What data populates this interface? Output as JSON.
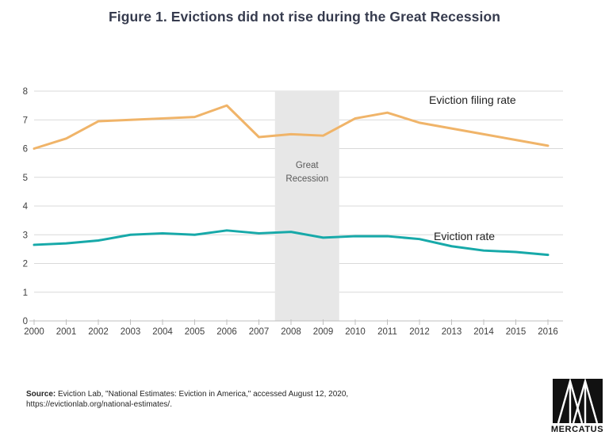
{
  "title": "Figure 1. Evictions did not rise during the Great Recession",
  "chart_data": {
    "type": "line",
    "title": "Figure 1. Evictions did not rise during the Great Recession",
    "x": [
      2000,
      2001,
      2002,
      2003,
      2004,
      2005,
      2006,
      2007,
      2008,
      2009,
      2010,
      2011,
      2012,
      2013,
      2014,
      2015,
      2016
    ],
    "series": [
      {
        "name": "Eviction filing rate",
        "color": "#f0b469",
        "values": [
          6.0,
          6.35,
          6.95,
          7.0,
          7.05,
          7.1,
          7.5,
          6.4,
          6.5,
          6.45,
          7.05,
          7.25,
          6.9,
          6.7,
          6.5,
          6.3,
          6.1
        ]
      },
      {
        "name": "Eviction rate",
        "color": "#17a9a9",
        "values": [
          2.65,
          2.7,
          2.8,
          3.0,
          3.05,
          3.0,
          3.15,
          3.05,
          3.1,
          2.9,
          2.95,
          2.95,
          2.85,
          2.6,
          2.45,
          2.4,
          2.3
        ]
      }
    ],
    "xlabel": "",
    "ylabel": "",
    "ylim": [
      0,
      8
    ],
    "xlim": [
      2000,
      2016
    ],
    "yticks": [
      0,
      1,
      2,
      3,
      4,
      5,
      6,
      7,
      8
    ],
    "grid": true,
    "legend_position": "inline-annotations",
    "band": {
      "label": "Great Recession",
      "label_lines": [
        "Great",
        "Recession"
      ],
      "x_start": 2007.5,
      "x_end": 2009.5,
      "color": "#e7e7e7",
      "label_color": "#595959"
    },
    "colors": {
      "grid": "#d9d9d9",
      "axis": "#bfbfbf",
      "tick_label": "#404040",
      "series_label": "#1f1f1f"
    }
  },
  "source": {
    "label": "Source:",
    "text": " Eviction Lab, \"National Estimates: Eviction in America,\" accessed August 12, 2020, https://evictionlab.org/national-estimates/."
  },
  "logo": {
    "text": "MERCATUS"
  }
}
